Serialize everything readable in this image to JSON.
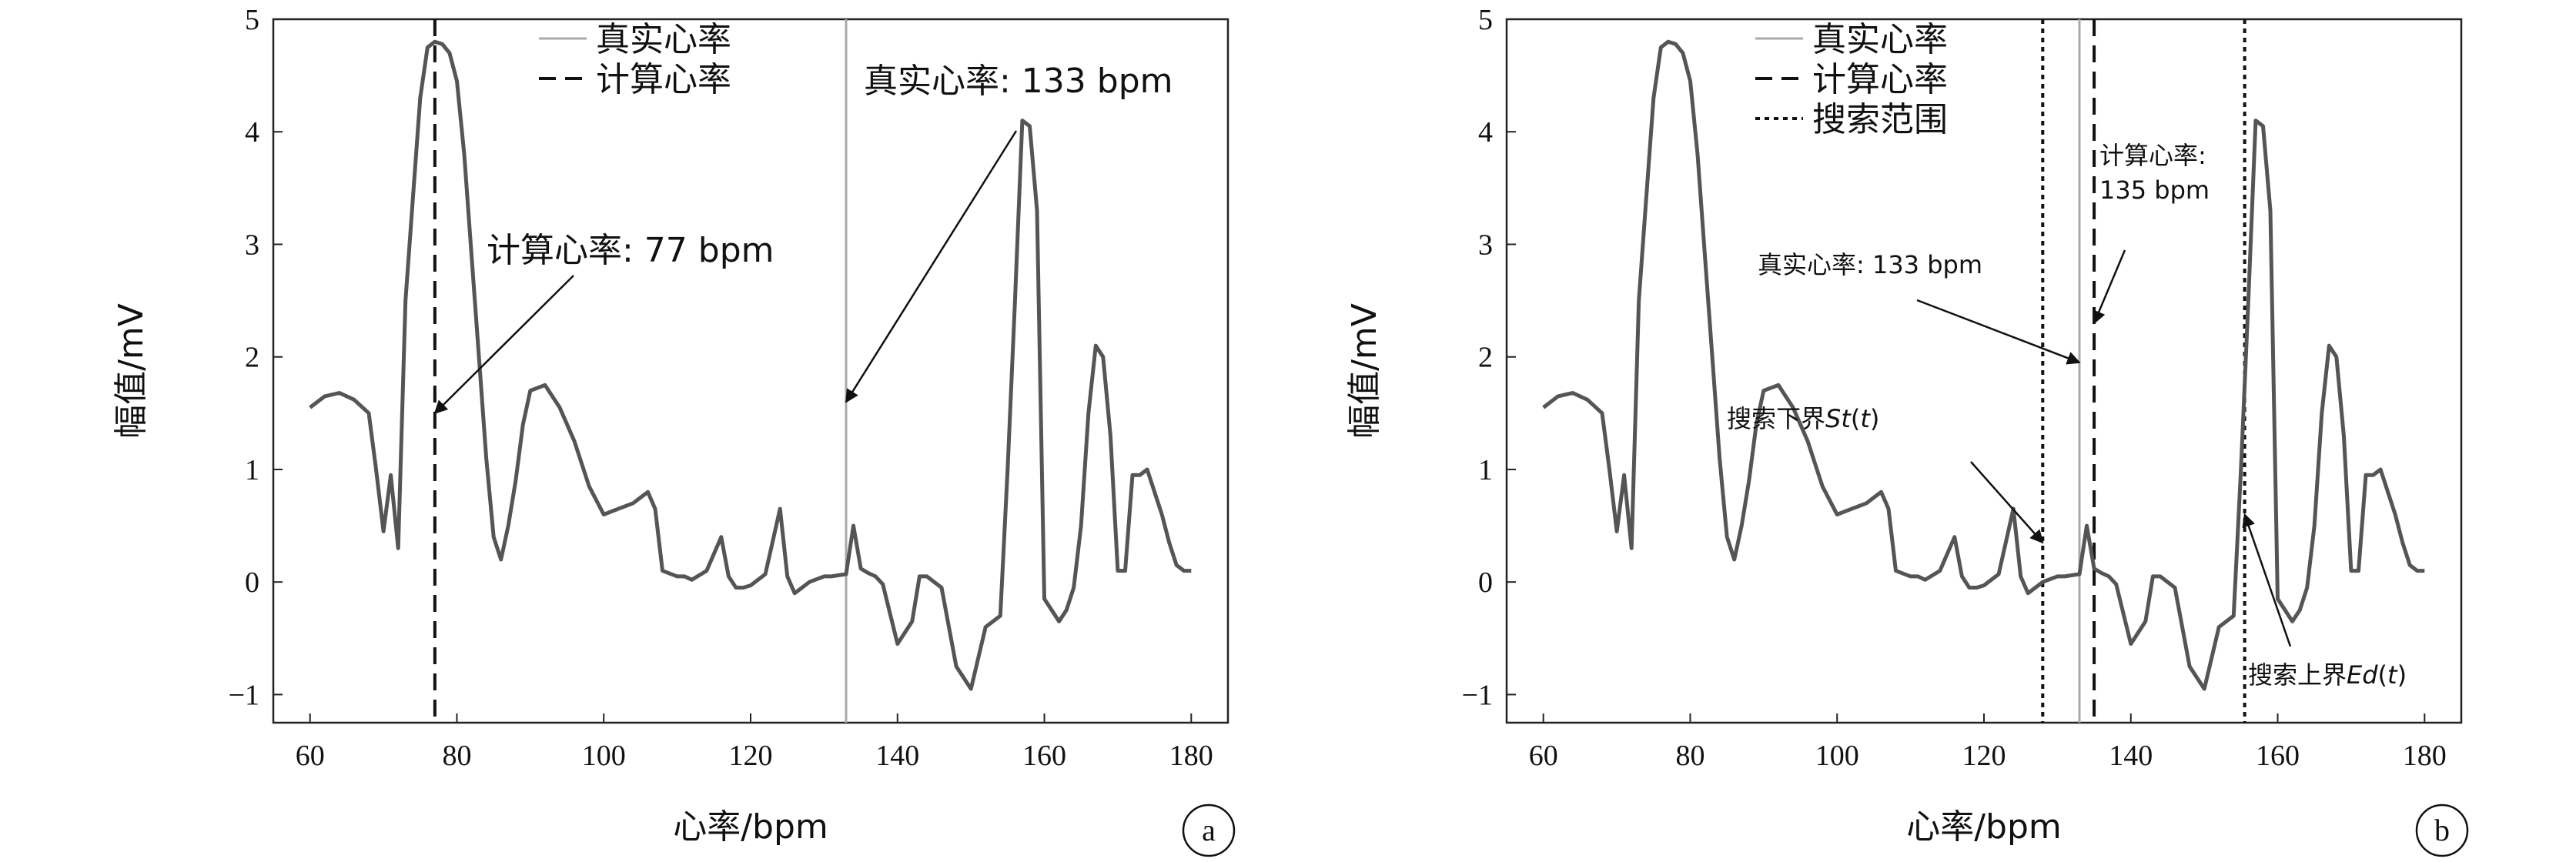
{
  "chart_data": [
    {
      "type": "line",
      "panel_label": "a",
      "xlabel": "心率/bpm",
      "ylabel": "幅值/mV",
      "xlim": [
        55,
        185
      ],
      "ylim": [
        -1.25,
        5
      ],
      "xticks": [
        60,
        80,
        100,
        120,
        140,
        160,
        180
      ],
      "yticks": [
        -1,
        0,
        1,
        2,
        3,
        4,
        5
      ],
      "grid": false,
      "legend_position": "top-center",
      "series": [
        {
          "name": "幅值",
          "x": [
            60,
            62,
            64,
            66,
            68,
            69,
            70,
            71,
            72,
            73,
            74,
            75,
            76,
            77,
            78,
            79,
            80,
            81,
            82,
            83,
            84,
            85,
            86,
            87,
            88,
            89,
            90,
            92,
            94,
            96,
            98,
            100,
            102,
            104,
            105,
            106,
            107,
            108,
            110,
            111,
            112,
            114,
            116,
            117,
            118,
            119,
            120,
            122,
            124,
            125,
            126,
            127,
            128,
            130,
            131,
            132,
            133,
            134,
            135,
            136,
            137,
            138,
            140,
            142,
            143,
            144,
            145,
            146,
            148,
            150,
            152,
            154,
            155,
            156,
            157,
            158,
            159,
            160,
            161,
            162,
            163,
            164,
            165,
            166,
            167,
            168,
            169,
            170,
            171,
            172,
            173,
            174,
            175,
            176,
            177,
            178,
            179,
            180
          ],
          "y": [
            1.55,
            1.65,
            1.68,
            1.62,
            1.5,
            1.0,
            0.45,
            0.95,
            0.3,
            2.5,
            3.4,
            4.3,
            4.75,
            4.8,
            4.78,
            4.7,
            4.45,
            3.8,
            2.9,
            2.0,
            1.1,
            0.4,
            0.2,
            0.5,
            0.9,
            1.4,
            1.7,
            1.75,
            1.55,
            1.25,
            0.85,
            0.6,
            0.65,
            0.7,
            0.75,
            0.8,
            0.65,
            0.1,
            0.05,
            0.05,
            0.02,
            0.1,
            0.4,
            0.05,
            -0.05,
            -0.05,
            -0.03,
            0.07,
            0.65,
            0.05,
            -0.1,
            -0.05,
            0.0,
            0.05,
            0.05,
            0.06,
            0.07,
            0.5,
            0.12,
            0.08,
            0.05,
            -0.02,
            -0.55,
            -0.35,
            0.05,
            0.05,
            0.0,
            -0.05,
            -0.75,
            -0.95,
            -0.4,
            -0.3,
            1.0,
            2.5,
            4.1,
            4.05,
            3.3,
            -0.15,
            -0.25,
            -0.35,
            -0.25,
            -0.05,
            0.5,
            1.5,
            2.1,
            2.0,
            1.3,
            0.1,
            0.1,
            0.95,
            0.95,
            1.0,
            0.8,
            0.6,
            0.35,
            0.15,
            0.1,
            0.1
          ]
        }
      ],
      "vlines": [
        {
          "name": "真实心率",
          "x": 133,
          "style": "solid",
          "color": "#aaaaaa"
        },
        {
          "name": "计算心率",
          "x": 77,
          "style": "dashed",
          "color": "#111111"
        }
      ],
      "legend": [
        {
          "label": "真实心率",
          "style": "solid"
        },
        {
          "label": "计算心率",
          "style": "dashed"
        }
      ],
      "annotations": [
        {
          "text": "计算心率: 77 bpm",
          "target_x": 77,
          "target_y": 1.5
        },
        {
          "text": "真实心率: 133 bpm",
          "target_x": 133,
          "target_y": 1.6
        }
      ]
    },
    {
      "type": "line",
      "panel_label": "b",
      "xlabel": "心率/bpm",
      "ylabel": "幅值/mV",
      "xlim": [
        55,
        185
      ],
      "ylim": [
        -1.25,
        5
      ],
      "xticks": [
        60,
        80,
        100,
        120,
        140,
        160,
        180
      ],
      "yticks": [
        -1,
        0,
        1,
        2,
        3,
        4,
        5
      ],
      "grid": false,
      "legend_position": "top-center",
      "series": [
        {
          "name": "幅值",
          "x": [
            60,
            62,
            64,
            66,
            68,
            69,
            70,
            71,
            72,
            73,
            74,
            75,
            76,
            77,
            78,
            79,
            80,
            81,
            82,
            83,
            84,
            85,
            86,
            87,
            88,
            89,
            90,
            92,
            94,
            96,
            98,
            100,
            102,
            104,
            105,
            106,
            107,
            108,
            110,
            111,
            112,
            114,
            116,
            117,
            118,
            119,
            120,
            122,
            124,
            125,
            126,
            127,
            128,
            130,
            131,
            132,
            133,
            134,
            135,
            136,
            137,
            138,
            140,
            142,
            143,
            144,
            145,
            146,
            148,
            150,
            152,
            154,
            155,
            156,
            157,
            158,
            159,
            160,
            161,
            162,
            163,
            164,
            165,
            166,
            167,
            168,
            169,
            170,
            171,
            172,
            173,
            174,
            175,
            176,
            177,
            178,
            179,
            180
          ],
          "y": [
            1.55,
            1.65,
            1.68,
            1.62,
            1.5,
            1.0,
            0.45,
            0.95,
            0.3,
            2.5,
            3.4,
            4.3,
            4.75,
            4.8,
            4.78,
            4.7,
            4.45,
            3.8,
            2.9,
            2.0,
            1.1,
            0.4,
            0.2,
            0.5,
            0.9,
            1.4,
            1.7,
            1.75,
            1.55,
            1.25,
            0.85,
            0.6,
            0.65,
            0.7,
            0.75,
            0.8,
            0.65,
            0.1,
            0.05,
            0.05,
            0.02,
            0.1,
            0.4,
            0.05,
            -0.05,
            -0.05,
            -0.03,
            0.07,
            0.65,
            0.05,
            -0.1,
            -0.05,
            0.0,
            0.05,
            0.05,
            0.06,
            0.07,
            0.5,
            0.12,
            0.08,
            0.05,
            -0.02,
            -0.55,
            -0.35,
            0.05,
            0.05,
            0.0,
            -0.05,
            -0.75,
            -0.95,
            -0.4,
            -0.3,
            1.0,
            2.5,
            4.1,
            4.05,
            3.3,
            -0.15,
            -0.25,
            -0.35,
            -0.25,
            -0.05,
            0.5,
            1.5,
            2.1,
            2.0,
            1.3,
            0.1,
            0.1,
            0.95,
            0.95,
            1.0,
            0.8,
            0.6,
            0.35,
            0.15,
            0.1,
            0.1
          ]
        }
      ],
      "vlines": [
        {
          "name": "搜索范围",
          "x": 128,
          "style": "dotted",
          "color": "#111111"
        },
        {
          "name": "真实心率",
          "x": 133,
          "style": "solid",
          "color": "#aaaaaa"
        },
        {
          "name": "计算心率",
          "x": 135,
          "style": "dashed",
          "color": "#111111"
        },
        {
          "name": "搜索范围",
          "x": 155.5,
          "style": "dotted",
          "color": "#111111"
        }
      ],
      "legend": [
        {
          "label": "真实心率",
          "style": "solid"
        },
        {
          "label": "计算心率",
          "style": "dashed"
        },
        {
          "label": "搜索范围",
          "style": "dotted"
        }
      ],
      "annotations": [
        {
          "text": "计算心率:",
          "text2": "135 bpm",
          "target_x": 135,
          "target_y": 2.3
        },
        {
          "text": "真实心率: 133 bpm",
          "target_x": 133,
          "target_y": 1.95
        },
        {
          "text": "搜索下界",
          "italic": "St",
          "paren_open": "(",
          "arg": "t",
          "paren_close": ")",
          "target_x": 128,
          "target_y": 0.35
        },
        {
          "text": "搜索上界",
          "italic": "Ed",
          "paren_open": "(",
          "arg": "t",
          "paren_close": ")",
          "target_x": 155.5,
          "target_y": 0.6
        }
      ]
    }
  ]
}
